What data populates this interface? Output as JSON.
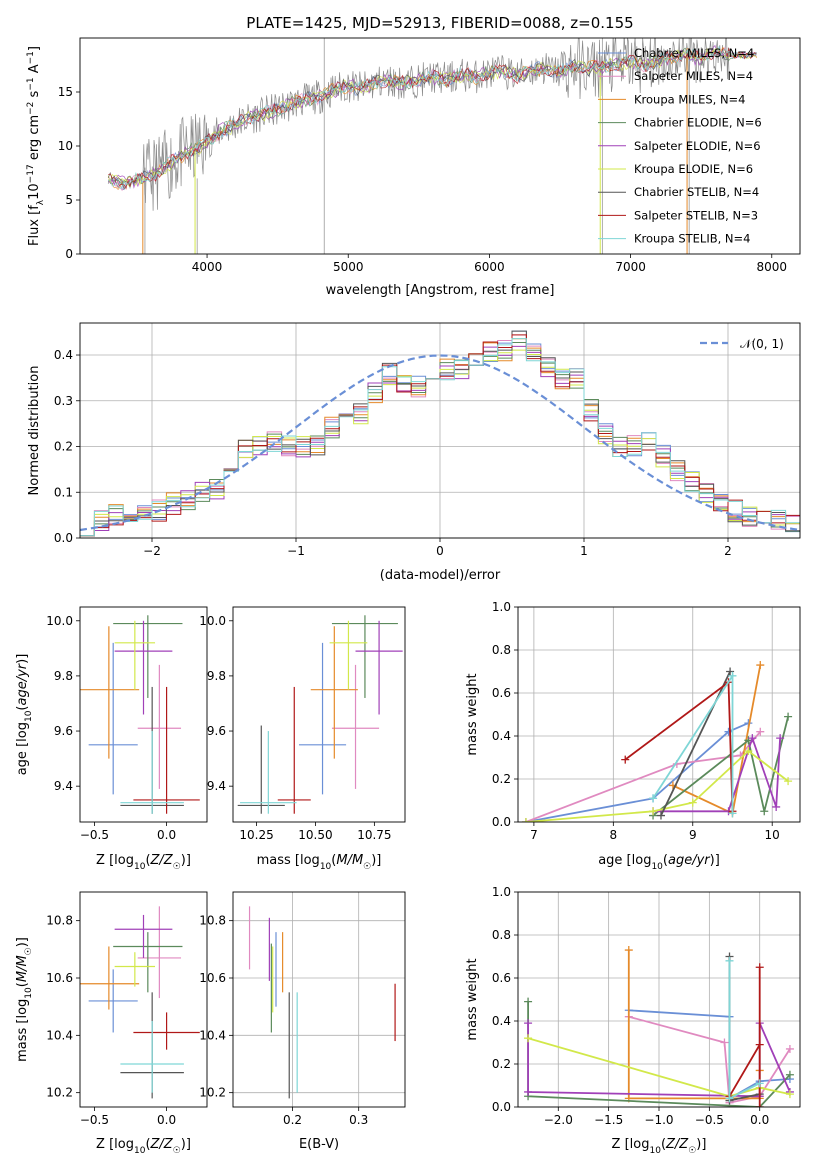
{
  "figure_title": "PLATE=1425, MJD=52913, FIBERID=0088, z=0.155",
  "colors": {
    "chabrier_miles": "#6a8fd6",
    "salpeter_miles": "#e08ac0",
    "kroupa_miles": "#e58a2a",
    "chabrier_elodie": "#5b8a5b",
    "salpeter_elodie": "#a040b8",
    "kroupa_elodie": "#d2e84a",
    "chabrier_stelib": "#555555",
    "salpeter_stelib": "#b01818",
    "kroupa_stelib": "#7fd6d6",
    "normal_curve": "#6a8fd6",
    "data_spectrum": "#8a8a8a"
  },
  "chart_data": [
    {
      "id": "spectrum",
      "type": "line",
      "title": "PLATE=1425, MJD=52913, FIBERID=0088, z=0.155",
      "xlabel": "wavelength [Angstrom, rest frame]",
      "ylabel": "Flux [f_λ 10^-17 erg cm^-2 s^-1 A^-1]",
      "xlim": [
        3100,
        8200
      ],
      "ylim": [
        0,
        20
      ],
      "xticks": [
        "4000",
        "5000",
        "6000",
        "7000",
        "8000"
      ],
      "yticks": [
        "0",
        "5",
        "10",
        "15"
      ],
      "grid": false,
      "legend_placement": "top-right",
      "legend": [
        "Chabrier MILES, N_SSP=4",
        "Salpeter MILES, N_SSP=4",
        "Kroupa MILES, N_SSP=4",
        "Chabrier ELODIE, N_SSP=6",
        "Salpeter ELODIE, N_SSP=6",
        "Kroupa ELODIE, N_SSP=6",
        "Chabrier STELIB, N_SSP=4",
        "Salpeter STELIB, N_SSP=3",
        "Kroupa STELIB, N_SSP=4"
      ],
      "continuum": {
        "x": [
          3300,
          3400,
          3500,
          3600,
          3700,
          3800,
          3900,
          4000,
          4100,
          4200,
          4300,
          4400,
          4500,
          4600,
          4700,
          4800,
          4900,
          5000,
          5100,
          5200,
          5300,
          5400,
          5500,
          5600,
          5700,
          5800,
          5900,
          6000,
          6100,
          6200,
          6300,
          6400,
          6500,
          6600,
          6700,
          6800,
          6900,
          7000,
          7100,
          7200,
          7300,
          7400,
          7500,
          7600,
          7700,
          7800
        ],
        "y": [
          6.9,
          6.6,
          6.8,
          7.2,
          8.0,
          9.0,
          9.6,
          10.4,
          11.4,
          12.0,
          12.6,
          13.0,
          13.4,
          13.9,
          14.3,
          14.6,
          15.2,
          15.6,
          15.3,
          15.9,
          16.0,
          15.8,
          16.1,
          16.4,
          16.2,
          16.6,
          16.4,
          16.8,
          16.9,
          16.5,
          17.0,
          17.2,
          16.8,
          17.4,
          17.2,
          17.3,
          17.6,
          17.8,
          17.5,
          17.9,
          18.2,
          18.4,
          18.1,
          18.8,
          18.3,
          17.6
        ]
      }
    },
    {
      "id": "residuals",
      "type": "line",
      "xlabel": "(data-model)/error",
      "ylabel": "Normed distribution",
      "xlim": [
        -2.5,
        2.5
      ],
      "ylim": [
        0,
        0.47
      ],
      "xticks": [
        "−2",
        "−1",
        "0",
        "1",
        "2"
      ],
      "yticks": [
        "0.0",
        "0.1",
        "0.2",
        "0.3",
        "0.4"
      ],
      "grid": true,
      "legend_placement": "top-right",
      "legend": [
        "𝒩(0, 1)"
      ],
      "bin_width": 0.1,
      "bin_start": -2.5,
      "base_hist": [
        0.03,
        0.035,
        0.05,
        0.06,
        0.055,
        0.06,
        0.075,
        0.085,
        0.1,
        0.11,
        0.14,
        0.19,
        0.2,
        0.21,
        0.2,
        0.2,
        0.2,
        0.24,
        0.26,
        0.27,
        0.32,
        0.36,
        0.34,
        0.33,
        0.35,
        0.37,
        0.37,
        0.4,
        0.41,
        0.41,
        0.43,
        0.4,
        0.37,
        0.35,
        0.35,
        0.28,
        0.23,
        0.2,
        0.2,
        0.21,
        0.18,
        0.15,
        0.12,
        0.1,
        0.08,
        0.06,
        0.05,
        0.04,
        0.04,
        0.035
      ]
    },
    {
      "id": "age_vs_Z",
      "type": "scatter",
      "xlabel": "Z [log10(Z/Z☉)]",
      "ylabel": "age [log10(age/yr)]",
      "xlim": [
        -0.6,
        0.28
      ],
      "ylim": [
        9.27,
        10.05
      ],
      "xticks": [
        "−0.5",
        "0.0"
      ],
      "yticks": [
        "9.4",
        "9.6",
        "9.8",
        "10.0"
      ],
      "grid": false,
      "points": [
        {
          "series": "chabrier_miles",
          "x": -0.37,
          "y": 9.55,
          "xerr": 0.17,
          "yerr": [
            9.37,
            9.92
          ]
        },
        {
          "series": "salpeter_miles",
          "x": -0.05,
          "y": 9.61,
          "xerr": 0.15,
          "yerr": [
            9.39,
            9.84
          ]
        },
        {
          "series": "kroupa_miles",
          "x": -0.4,
          "y": 9.75,
          "xerr": 0.21,
          "yerr": [
            9.5,
            9.98
          ]
        },
        {
          "series": "chabrier_elodie",
          "x": -0.13,
          "y": 9.99,
          "xerr": 0.24,
          "yerr": [
            9.72,
            10.02
          ]
        },
        {
          "series": "salpeter_elodie",
          "x": -0.16,
          "y": 9.89,
          "xerr": 0.2,
          "yerr": [
            9.66,
            10.0
          ]
        },
        {
          "series": "kroupa_elodie",
          "x": -0.22,
          "y": 9.92,
          "xerr": 0.14,
          "yerr": [
            9.75,
            10.0
          ]
        },
        {
          "series": "chabrier_stelib",
          "x": -0.1,
          "y": 9.33,
          "xerr": 0.22,
          "yerr": [
            9.3,
            9.76
          ]
        },
        {
          "series": "salpeter_stelib",
          "x": 0.0,
          "y": 9.35,
          "xerr": 0.23,
          "yerr": [
            9.3,
            9.76
          ]
        },
        {
          "series": "kroupa_stelib",
          "x": -0.1,
          "y": 9.34,
          "xerr": 0.22,
          "yerr": [
            9.3,
            9.6
          ]
        }
      ]
    },
    {
      "id": "age_vs_mass",
      "type": "scatter",
      "xlabel": "mass [log10(M/M☉)]",
      "ylabel": "",
      "xlim": [
        10.15,
        10.88
      ],
      "ylim": [
        9.27,
        10.05
      ],
      "xticks": [
        "10.25",
        "10.50",
        "10.75"
      ],
      "yticks": [
        "9.4",
        "9.6",
        "9.8",
        "10.0"
      ],
      "grid": false,
      "points": [
        {
          "series": "chabrier_miles",
          "x": 10.53,
          "y": 9.55,
          "xerr": 0.1,
          "yerr": [
            9.37,
            9.92
          ]
        },
        {
          "series": "salpeter_miles",
          "x": 10.67,
          "y": 9.61,
          "xerr": 0.1,
          "yerr": [
            9.39,
            9.84
          ]
        },
        {
          "series": "kroupa_miles",
          "x": 10.58,
          "y": 9.75,
          "xerr": 0.1,
          "yerr": [
            9.5,
            9.98
          ]
        },
        {
          "series": "chabrier_elodie",
          "x": 10.71,
          "y": 9.99,
          "xerr": 0.14,
          "yerr": [
            9.72,
            10.02
          ]
        },
        {
          "series": "salpeter_elodie",
          "x": 10.77,
          "y": 9.89,
          "xerr": 0.1,
          "yerr": [
            9.66,
            10.0
          ]
        },
        {
          "series": "kroupa_elodie",
          "x": 10.64,
          "y": 9.92,
          "xerr": 0.08,
          "yerr": [
            9.75,
            10.0
          ]
        },
        {
          "series": "chabrier_stelib",
          "x": 10.27,
          "y": 9.33,
          "xerr": 0.1,
          "yerr": [
            9.3,
            9.62
          ]
        },
        {
          "series": "salpeter_stelib",
          "x": 10.41,
          "y": 9.35,
          "xerr": 0.07,
          "yerr": [
            9.3,
            9.76
          ]
        },
        {
          "series": "kroupa_stelib",
          "x": 10.3,
          "y": 9.34,
          "xerr": 0.12,
          "yerr": [
            9.3,
            9.6
          ]
        }
      ]
    },
    {
      "id": "massweight_vs_age",
      "type": "line",
      "xlabel": "age [log10(age/yr)]",
      "ylabel": "mass weight",
      "xlim": [
        6.8,
        10.35
      ],
      "ylim": [
        0,
        1
      ],
      "xticks": [
        "7",
        "8",
        "9",
        "10"
      ],
      "yticks": [
        "0.0",
        "0.2",
        "0.4",
        "0.6",
        "0.8",
        "1.0"
      ],
      "grid": true,
      "series": [
        {
          "series": "chabrier_miles",
          "x": [
            6.9,
            8.5,
            9.45,
            9.7
          ],
          "y": [
            0.0,
            0.11,
            0.42,
            0.46
          ]
        },
        {
          "series": "salpeter_miles",
          "x": [
            6.9,
            8.8,
            9.6,
            9.85
          ],
          "y": [
            0.0,
            0.27,
            0.31,
            0.42
          ]
        },
        {
          "series": "kroupa_miles",
          "x": [
            8.75,
            9.5,
            9.85
          ],
          "y": [
            0.17,
            0.04,
            0.73
          ]
        },
        {
          "series": "chabrier_elodie",
          "x": [
            8.5,
            9.7,
            9.9,
            10.2
          ],
          "y": [
            0.03,
            0.38,
            0.05,
            0.49
          ]
        },
        {
          "series": "salpeter_elodie",
          "x": [
            8.5,
            9.45,
            9.75,
            10.05,
            10.1
          ],
          "y": [
            0.05,
            0.05,
            0.39,
            0.07,
            0.39
          ]
        },
        {
          "series": "kroupa_elodie",
          "x": [
            6.9,
            8.5,
            9.0,
            9.7,
            10.2
          ],
          "y": [
            0.0,
            0.05,
            0.09,
            0.33,
            0.19
          ]
        },
        {
          "series": "chabrier_stelib",
          "x": [
            8.6,
            9.47
          ],
          "y": [
            0.03,
            0.7
          ]
        },
        {
          "series": "salpeter_stelib",
          "x": [
            8.15,
            9.45,
            9.5
          ],
          "y": [
            0.29,
            0.65,
            0.05
          ]
        },
        {
          "series": "kroupa_stelib",
          "x": [
            8.5,
            9.5,
            9.5
          ],
          "y": [
            0.11,
            0.68,
            0.04
          ]
        }
      ]
    },
    {
      "id": "mass_vs_Z",
      "type": "scatter",
      "xlabel": "Z [log10(Z/Z☉)]",
      "ylabel": "mass [log10(M/M☉)]",
      "xlim": [
        -0.6,
        0.28
      ],
      "ylim": [
        10.15,
        10.9
      ],
      "xticks": [
        "−0.5",
        "0.0"
      ],
      "yticks": [
        "10.2",
        "10.4",
        "10.6",
        "10.8"
      ],
      "grid": false,
      "points": [
        {
          "series": "chabrier_miles",
          "x": -0.37,
          "y": 10.52,
          "xerr": 0.17,
          "yerr": [
            10.41,
            10.63
          ]
        },
        {
          "series": "salpeter_miles",
          "x": -0.05,
          "y": 10.67,
          "xerr": 0.15,
          "yerr": [
            10.53,
            10.85
          ]
        },
        {
          "series": "kroupa_miles",
          "x": -0.4,
          "y": 10.58,
          "xerr": 0.21,
          "yerr": [
            10.49,
            10.71
          ]
        },
        {
          "series": "chabrier_elodie",
          "x": -0.13,
          "y": 10.71,
          "xerr": 0.24,
          "yerr": [
            10.55,
            10.76
          ]
        },
        {
          "series": "salpeter_elodie",
          "x": -0.16,
          "y": 10.77,
          "xerr": 0.2,
          "yerr": [
            10.67,
            10.82
          ]
        },
        {
          "series": "kroupa_elodie",
          "x": -0.22,
          "y": 10.64,
          "xerr": 0.14,
          "yerr": [
            10.57,
            10.69
          ]
        },
        {
          "series": "chabrier_stelib",
          "x": -0.1,
          "y": 10.27,
          "xerr": 0.22,
          "yerr": [
            10.18,
            10.55
          ]
        },
        {
          "series": "salpeter_stelib",
          "x": 0.0,
          "y": 10.41,
          "xerr": 0.23,
          "yerr": [
            10.35,
            10.48
          ]
        },
        {
          "series": "kroupa_stelib",
          "x": -0.1,
          "y": 10.3,
          "xerr": 0.22,
          "yerr": [
            10.2,
            10.45
          ]
        }
      ]
    },
    {
      "id": "mass_vs_ebv",
      "type": "scatter",
      "xlabel": "E(B-V)",
      "ylabel": "",
      "xlim": [
        0.11,
        0.37
      ],
      "ylim": [
        10.15,
        10.9
      ],
      "xticks": [
        "0.2",
        "0.3"
      ],
      "yticks": [
        "10.2",
        "10.4",
        "10.6",
        "10.8"
      ],
      "grid": true,
      "points": [
        {
          "series": "chabrier_miles",
          "x": 0.175,
          "y": 10.6,
          "yerr": [
            10.5,
            10.76
          ]
        },
        {
          "series": "salpeter_miles",
          "x": 0.135,
          "y": 10.73,
          "yerr": [
            10.63,
            10.85
          ]
        },
        {
          "series": "kroupa_miles",
          "x": 0.185,
          "y": 10.65,
          "yerr": [
            10.55,
            10.76
          ]
        },
        {
          "series": "chabrier_elodie",
          "x": 0.168,
          "y": 10.55,
          "yerr": [
            10.41,
            10.72
          ]
        },
        {
          "series": "salpeter_elodie",
          "x": 0.165,
          "y": 10.71,
          "yerr": [
            10.59,
            10.81
          ]
        },
        {
          "series": "kroupa_elodie",
          "x": 0.17,
          "y": 10.6,
          "yerr": [
            10.48,
            10.71
          ]
        },
        {
          "series": "chabrier_stelib",
          "x": 0.195,
          "y": 10.37,
          "yerr": [
            10.18,
            10.55
          ]
        },
        {
          "series": "salpeter_stelib",
          "x": 0.355,
          "y": 10.48,
          "yerr": [
            10.38,
            10.58
          ]
        },
        {
          "series": "kroupa_stelib",
          "x": 0.207,
          "y": 10.38,
          "yerr": [
            10.2,
            10.55
          ]
        }
      ]
    },
    {
      "id": "massweight_vs_Z",
      "type": "line",
      "xlabel": "Z [log10(Z/Z☉)]",
      "ylabel": "mass weight",
      "xlim": [
        -2.4,
        0.4
      ],
      "ylim": [
        0,
        1
      ],
      "xticks": [
        "−2.0",
        "−1.5",
        "−1.0",
        "−0.5",
        "0.0"
      ],
      "yticks": [
        "0.0",
        "0.2",
        "0.4",
        "0.6",
        "0.8",
        "1.0"
      ],
      "grid": true,
      "series": [
        {
          "series": "chabrier_miles",
          "x": [
            -1.3,
            -0.3,
            -0.3,
            0.0,
            0.3
          ],
          "y": [
            0.45,
            0.42,
            0.04,
            0.12,
            0.13
          ]
        },
        {
          "series": "salpeter_miles",
          "x": [
            -1.3,
            -0.35,
            -0.3,
            0.0,
            0.3
          ],
          "y": [
            0.42,
            0.3,
            0.02,
            0.05,
            0.27
          ]
        },
        {
          "series": "kroupa_miles",
          "x": [
            -1.3,
            -1.3,
            0.0,
            0.0
          ],
          "y": [
            0.73,
            0.04,
            0.04,
            0.17
          ]
        },
        {
          "series": "chabrier_elodie",
          "x": [
            -2.3,
            -2.3,
            0.0,
            0.3
          ],
          "y": [
            0.49,
            0.05,
            0.0,
            0.15
          ]
        },
        {
          "series": "salpeter_elodie",
          "x": [
            -2.3,
            -2.3,
            0.0,
            0.0,
            0.3
          ],
          "y": [
            0.39,
            0.07,
            0.05,
            0.39,
            0.07
          ]
        },
        {
          "series": "kroupa_elodie",
          "x": [
            -2.3,
            -0.3,
            0.0,
            0.3
          ],
          "y": [
            0.32,
            0.05,
            0.09,
            0.06
          ]
        },
        {
          "series": "chabrier_stelib",
          "x": [
            -0.3,
            -0.3,
            0.0
          ],
          "y": [
            0.7,
            0.03,
            0.06
          ]
        },
        {
          "series": "salpeter_stelib",
          "x": [
            -0.3,
            0.0,
            0.0,
            0.0
          ],
          "y": [
            0.05,
            0.29,
            0.65,
            0.0
          ]
        },
        {
          "series": "kroupa_stelib",
          "x": [
            -0.3,
            -0.3,
            0.0
          ],
          "y": [
            0.68,
            0.04,
            0.11
          ]
        }
      ]
    }
  ]
}
